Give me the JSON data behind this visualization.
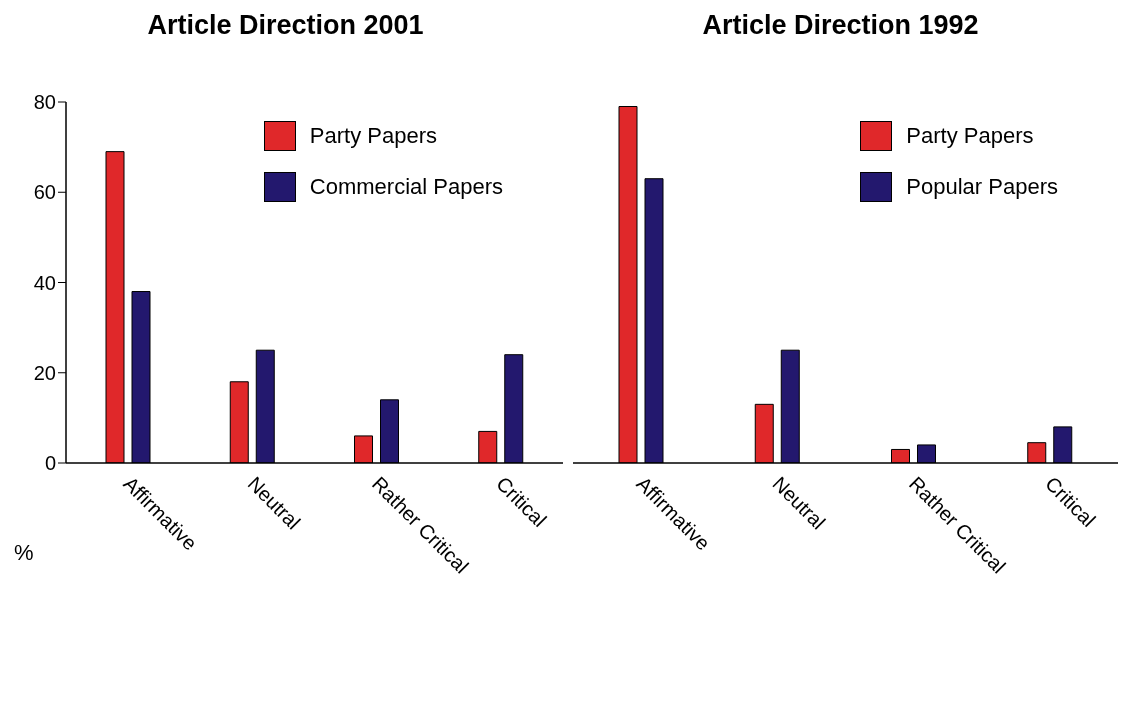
{
  "chart_data": [
    {
      "type": "bar",
      "title": "Article Direction 2001",
      "ylabel": "%",
      "categories": [
        "Affirmative",
        "Neutral",
        "Rather Critical",
        "Critical"
      ],
      "series": [
        {
          "name": "Party Papers",
          "color": "#e0282a",
          "values": [
            69,
            18,
            6,
            7
          ]
        },
        {
          "name": "Commercial Papers",
          "color": "#23186e",
          "values": [
            38,
            25,
            14,
            24
          ]
        }
      ],
      "ylim": [
        0,
        80
      ],
      "yticks": [
        0,
        20,
        40,
        60,
        80
      ],
      "legend": "top right"
    },
    {
      "type": "bar",
      "title": "Article Direction 1992",
      "categories": [
        "Affirmative",
        "Neutral",
        "Rather Critical",
        "Critical"
      ],
      "series": [
        {
          "name": "Party Papers",
          "color": "#e0282a",
          "values": [
            79,
            13,
            3,
            4.5
          ]
        },
        {
          "name": "Popular Papers",
          "color": "#23186e",
          "values": [
            63,
            25,
            4,
            8
          ]
        }
      ],
      "ylim": [
        0,
        80
      ],
      "yticks": [
        0,
        20,
        40,
        60,
        80
      ],
      "legend": "top right",
      "tick_labels": "x"
    }
  ]
}
